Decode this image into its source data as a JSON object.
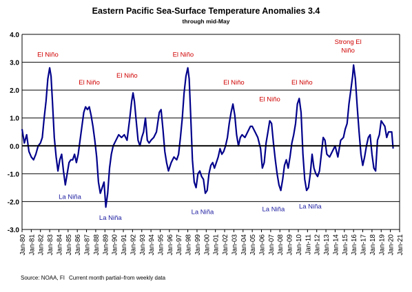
{
  "chart_data": {
    "type": "line",
    "title": "Eastern Pacific Sea-Surface Temperature Anomalies 3.4",
    "subtitle": "through mid-May",
    "xlabel": "",
    "ylabel": "",
    "ylim": [
      -3.0,
      4.0
    ],
    "y_ticks": [
      "-3.0",
      "-2.0",
      "-1.0",
      "0.0",
      "1.0",
      "2.0",
      "3.0",
      "4.0"
    ],
    "x_tick_labels": [
      "Jan-80",
      "Jan-81",
      "Jan-82",
      "Jan-83",
      "Jan-84",
      "Jan-85",
      "Jan-86",
      "Jan-87",
      "Jan-88",
      "Jan-89",
      "Jan-90",
      "Jan-91",
      "Jan-92",
      "Jan-93",
      "Jan-94",
      "Jan-95",
      "Jan-96",
      "Jan-97",
      "Jan-98",
      "Jan-99",
      "Jan-00",
      "Jan-01",
      "Jan-02",
      "Jan-03",
      "Jan-04",
      "Jan-05",
      "Jan-06",
      "Jan-07",
      "Jan-08",
      "Jan-09",
      "Jan-10",
      "Jan-11",
      "Jan-12",
      "Jan-13",
      "Jan-14",
      "Jan-15",
      "Jan-16",
      "Jan-17",
      "Jan-18",
      "Jan-19",
      "Jan-20",
      "Jan-21"
    ],
    "grid": "horizontal",
    "legend": "none",
    "line_color": "#00008B",
    "series": [
      {
        "x": [
          1980.0,
          1980.25,
          1980.5,
          1980.75,
          1981.0,
          1981.25,
          1981.5,
          1981.75,
          1982.0,
          1982.2,
          1982.4,
          1982.6,
          1982.8,
          1983.0,
          1983.15,
          1983.3,
          1983.5,
          1983.7,
          1983.9,
          1984.1,
          1984.3,
          1984.5,
          1984.7,
          1984.9,
          1985.1,
          1985.3,
          1985.5,
          1985.7,
          1985.9,
          1986.1,
          1986.3,
          1986.5,
          1986.7,
          1986.9,
          1987.1,
          1987.3,
          1987.5,
          1987.7,
          1987.9,
          1988.1,
          1988.3,
          1988.5,
          1988.7,
          1988.9,
          1989.1,
          1989.3,
          1989.5,
          1989.7,
          1989.9,
          1990.2,
          1990.5,
          1990.8,
          1991.1,
          1991.4,
          1991.7,
          1991.9,
          1992.05,
          1992.2,
          1992.4,
          1992.6,
          1992.8,
          1993.0,
          1993.2,
          1993.4,
          1993.6,
          1993.8,
          1994.0,
          1994.3,
          1994.6,
          1994.9,
          1995.1,
          1995.3,
          1995.5,
          1995.7,
          1995.9,
          1996.2,
          1996.5,
          1996.8,
          1997.0,
          1997.2,
          1997.4,
          1997.6,
          1997.8,
          1998.0,
          1998.15,
          1998.3,
          1998.5,
          1998.7,
          1998.9,
          1999.1,
          1999.3,
          1999.5,
          1999.7,
          1999.9,
          2000.1,
          2000.3,
          2000.5,
          2000.7,
          2000.9,
          2001.1,
          2001.3,
          2001.5,
          2001.7,
          2001.9,
          2002.1,
          2002.3,
          2002.5,
          2002.7,
          2002.9,
          2003.1,
          2003.3,
          2003.5,
          2003.7,
          2003.9,
          2004.2,
          2004.5,
          2004.8,
          2005.0,
          2005.3,
          2005.6,
          2005.9,
          2006.1,
          2006.3,
          2006.5,
          2006.7,
          2006.9,
          2007.1,
          2007.3,
          2007.5,
          2007.7,
          2007.9,
          2008.1,
          2008.3,
          2008.5,
          2008.7,
          2008.9,
          2009.1,
          2009.3,
          2009.5,
          2009.7,
          2009.9,
          2010.1,
          2010.3,
          2010.5,
          2010.7,
          2010.9,
          2011.1,
          2011.3,
          2011.5,
          2011.7,
          2011.9,
          2012.1,
          2012.3,
          2012.5,
          2012.7,
          2012.9,
          2013.1,
          2013.4,
          2013.7,
          2014.0,
          2014.3,
          2014.6,
          2014.9,
          2015.1,
          2015.3,
          2015.5,
          2015.7,
          2015.9,
          2016.0,
          2016.2,
          2016.4,
          2016.6,
          2016.8,
          2017.0,
          2017.2,
          2017.4,
          2017.6,
          2017.8,
          2018.0,
          2018.2,
          2018.4,
          2018.6,
          2018.8,
          2019.0,
          2019.2,
          2019.4,
          2019.6,
          2019.8,
          2020.0,
          2020.15,
          2020.3
        ],
        "values": [
          0.6,
          0.1,
          0.4,
          -0.2,
          -0.4,
          -0.5,
          -0.3,
          0.0,
          0.1,
          0.3,
          1.0,
          1.6,
          2.4,
          2.8,
          2.5,
          1.6,
          0.3,
          -0.4,
          -0.9,
          -0.5,
          -0.3,
          -0.9,
          -1.4,
          -1.0,
          -0.6,
          -0.5,
          -0.5,
          -0.3,
          -0.6,
          -0.3,
          0.2,
          0.7,
          1.2,
          1.4,
          1.3,
          1.4,
          1.1,
          0.7,
          0.2,
          -0.4,
          -1.3,
          -1.7,
          -1.5,
          -1.3,
          -2.2,
          -1.7,
          -0.8,
          -0.3,
          0.0,
          0.2,
          0.4,
          0.3,
          0.4,
          0.2,
          1.0,
          1.6,
          1.9,
          1.6,
          0.9,
          0.2,
          0.0,
          0.3,
          0.5,
          1.0,
          0.2,
          0.1,
          0.2,
          0.3,
          0.5,
          1.2,
          1.3,
          0.6,
          -0.2,
          -0.6,
          -0.9,
          -0.6,
          -0.4,
          -0.5,
          -0.3,
          0.3,
          1.0,
          1.9,
          2.5,
          2.8,
          2.4,
          1.2,
          -0.5,
          -1.3,
          -1.5,
          -1.0,
          -0.9,
          -1.1,
          -1.2,
          -1.7,
          -1.6,
          -1.0,
          -0.7,
          -0.6,
          -0.8,
          -0.6,
          -0.4,
          -0.1,
          -0.3,
          -0.2,
          0.0,
          0.3,
          0.8,
          1.2,
          1.5,
          1.1,
          0.4,
          0.0,
          0.3,
          0.4,
          0.3,
          0.5,
          0.7,
          0.7,
          0.5,
          0.3,
          -0.1,
          -0.8,
          -0.6,
          0.1,
          0.5,
          0.9,
          0.8,
          0.1,
          -0.5,
          -1.0,
          -1.4,
          -1.6,
          -1.2,
          -0.7,
          -0.5,
          -0.8,
          -0.4,
          0.1,
          0.4,
          0.8,
          1.5,
          1.7,
          1.2,
          -0.3,
          -1.2,
          -1.6,
          -1.5,
          -1.0,
          -0.3,
          -0.8,
          -1.0,
          -1.1,
          -0.9,
          -0.3,
          0.3,
          0.2,
          -0.3,
          -0.4,
          -0.2,
          0.0,
          -0.4,
          0.2,
          0.3,
          0.6,
          0.8,
          1.5,
          2.0,
          2.5,
          2.9,
          2.4,
          1.4,
          0.5,
          -0.3,
          -0.7,
          -0.4,
          0.0,
          0.3,
          0.4,
          -0.3,
          -0.8,
          -0.9,
          0.2,
          0.4,
          0.9,
          0.8,
          0.7,
          0.3,
          0.5,
          0.5,
          0.5,
          -0.1
        ]
      }
    ],
    "annotations": [
      {
        "text": "El Niño",
        "x": 1982.8,
        "y": 3.2,
        "color": "#d00000"
      },
      {
        "text": "El Niño",
        "x": 1987.3,
        "y": 2.2,
        "color": "#d00000"
      },
      {
        "text": "El Niño",
        "x": 1991.4,
        "y": 2.45,
        "color": "#d00000"
      },
      {
        "text": "El Niño",
        "x": 1997.5,
        "y": 3.2,
        "color": "#d00000"
      },
      {
        "text": "El Niño",
        "x": 2003.0,
        "y": 2.2,
        "color": "#d00000"
      },
      {
        "text": "El Niño",
        "x": 2006.9,
        "y": 1.6,
        "color": "#d00000"
      },
      {
        "text": "El Niño",
        "x": 2010.4,
        "y": 2.2,
        "color": "#d00000"
      },
      {
        "text": "Strong El",
        "x": 2015.4,
        "y": 3.65,
        "color": "#d00000"
      },
      {
        "text": "Niño",
        "x": 2015.4,
        "y": 3.35,
        "color": "#d00000"
      },
      {
        "text": "La Niña",
        "x": 1985.2,
        "y": -1.9,
        "color": "#1a1aa0"
      },
      {
        "text": "La Niña",
        "x": 1989.6,
        "y": -2.65,
        "color": "#1a1aa0"
      },
      {
        "text": "La Niña",
        "x": 1999.6,
        "y": -2.45,
        "color": "#1a1aa0"
      },
      {
        "text": "La Niña",
        "x": 2007.3,
        "y": -2.35,
        "color": "#1a1aa0"
      },
      {
        "text": "La Niña",
        "x": 2011.3,
        "y": -2.25,
        "color": "#1a1aa0"
      }
    ]
  },
  "footer": {
    "source": "Source: NOAA, FI",
    "note": "Current month partial–from weekly data"
  }
}
